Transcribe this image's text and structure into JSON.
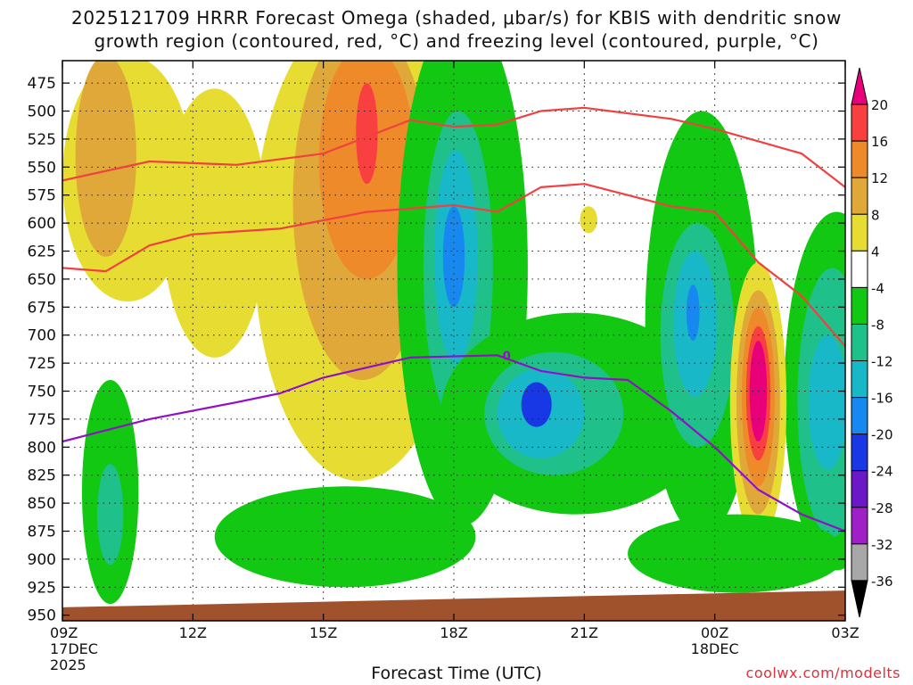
{
  "chart_data": {
    "type": "time-height cross section",
    "title": "2025121709 HRRR Forecast Omega (shaded, μbar/s) for KBIS with dendritic snow",
    "title_line2": "growth region (contoured, red, °C) and freezing level (contoured, purple, °C)",
    "xlabel": "Forecast Time (UTC)",
    "credit": "coolwx.com/modelts",
    "x_hours": [
      0,
      3,
      6,
      9,
      12,
      15,
      18
    ],
    "x_ticks": [
      {
        "hour": 0,
        "label": "09Z",
        "date": "17DEC",
        "year": "2025"
      },
      {
        "hour": 3,
        "label": "12Z",
        "date": "",
        "year": ""
      },
      {
        "hour": 6,
        "label": "15Z",
        "date": "",
        "year": ""
      },
      {
        "hour": 9,
        "label": "18Z",
        "date": "",
        "year": ""
      },
      {
        "hour": 12,
        "label": "21Z",
        "date": "",
        "year": ""
      },
      {
        "hour": 15,
        "label": "00Z",
        "date": "18DEC",
        "year": ""
      },
      {
        "hour": 18,
        "label": "03Z",
        "date": "",
        "year": ""
      }
    ],
    "y_ticks": [
      "475",
      "500",
      "525",
      "550",
      "575",
      "600",
      "625",
      "650",
      "675",
      "700",
      "725",
      "750",
      "775",
      "800",
      "825",
      "850",
      "875",
      "900",
      "925",
      "950"
    ],
    "y_range_mb": [
      455,
      955
    ],
    "colorbar": {
      "labels": [
        "20",
        "16",
        "12",
        "8",
        "4",
        "-4",
        "-8",
        "-12",
        "-16",
        "-20",
        "-24",
        "-28",
        "-32",
        "-36"
      ],
      "bins": [
        {
          "color": "#e8007a"
        },
        {
          "color": "#f84040"
        },
        {
          "color": "#ef8a2a"
        },
        {
          "color": "#e0a838"
        },
        {
          "color": "#e7dc32"
        },
        {
          "color": "#ffffff"
        },
        {
          "color": "#12c812"
        },
        {
          "color": "#20c08a"
        },
        {
          "color": "#18b8c8"
        },
        {
          "color": "#1688f0"
        },
        {
          "color": "#1838e6"
        },
        {
          "color": "#6a18c8"
        },
        {
          "color": "#a020c8"
        },
        {
          "color": "#a8a8a8"
        },
        {
          "color": "#000000"
        }
      ]
    },
    "omega_regions": [
      {
        "level": "4",
        "color": "#e7dc32",
        "hour": 1.5,
        "mb": 560,
        "dh": 1.5,
        "dmb": 110
      },
      {
        "level": "8",
        "color": "#e0a838",
        "hour": 1.0,
        "mb": 540,
        "dh": 0.7,
        "dmb": 90
      },
      {
        "level": "4",
        "color": "#e7dc32",
        "hour": 3.5,
        "mb": 600,
        "dh": 1.2,
        "dmb": 120
      },
      {
        "level": "4",
        "color": "#e7dc32",
        "hour": 6.8,
        "mb": 620,
        "dh": 2.4,
        "dmb": 210
      },
      {
        "level": "8",
        "color": "#e0a838",
        "hour": 6.9,
        "mb": 580,
        "dh": 1.6,
        "dmb": 160
      },
      {
        "level": "12",
        "color": "#ef8a2a",
        "hour": 7.0,
        "mb": 545,
        "dh": 1.1,
        "dmb": 105
      },
      {
        "level": "16",
        "color": "#f84040",
        "hour": 7.0,
        "mb": 520,
        "dh": 0.25,
        "dmb": 45
      },
      {
        "level": "-4",
        "color": "#12c812",
        "hour": 9.2,
        "mb": 640,
        "dh": 1.5,
        "dmb": 230
      },
      {
        "level": "-8",
        "color": "#20c08a",
        "hour": 9.1,
        "mb": 640,
        "dh": 0.8,
        "dmb": 140
      },
      {
        "level": "-12",
        "color": "#18b8c8",
        "hour": 9.05,
        "mb": 630,
        "dh": 0.5,
        "dmb": 95
      },
      {
        "level": "-16",
        "color": "#1688f0",
        "hour": 9.0,
        "mb": 630,
        "dh": 0.25,
        "dmb": 45
      },
      {
        "level": "-4",
        "color": "#12c812",
        "hour": 11.8,
        "mb": 770,
        "dh": 3.1,
        "dmb": 90
      },
      {
        "level": "-8",
        "color": "#20c08a",
        "hour": 11.3,
        "mb": 770,
        "dh": 1.6,
        "dmb": 55
      },
      {
        "level": "-12",
        "color": "#18b8c8",
        "hour": 11.0,
        "mb": 770,
        "dh": 1.0,
        "dmb": 40
      },
      {
        "level": "-20",
        "color": "#1838e6",
        "hour": 10.9,
        "mb": 762,
        "dh": 0.35,
        "dmb": 20
      },
      {
        "level": "-4",
        "color": "#12c812",
        "hour": 14.7,
        "mb": 690,
        "dh": 1.3,
        "dmb": 190
      },
      {
        "level": "-8",
        "color": "#20c08a",
        "hour": 14.6,
        "mb": 700,
        "dh": 0.85,
        "dmb": 100
      },
      {
        "level": "-12",
        "color": "#18b8c8",
        "hour": 14.55,
        "mb": 690,
        "dh": 0.5,
        "dmb": 65
      },
      {
        "level": "-16",
        "color": "#1688f0",
        "hour": 14.5,
        "mb": 680,
        "dh": 0.15,
        "dmb": 25
      },
      {
        "level": "-4",
        "color": "#12c812",
        "hour": 17.8,
        "mb": 750,
        "dh": 1.2,
        "dmb": 160
      },
      {
        "level": "-8",
        "color": "#20c08a",
        "hour": 17.7,
        "mb": 760,
        "dh": 0.8,
        "dmb": 120
      },
      {
        "level": "-12",
        "color": "#18b8c8",
        "hour": 17.6,
        "mb": 760,
        "dh": 0.45,
        "dmb": 60
      },
      {
        "level": "4",
        "color": "#e7dc32",
        "hour": 16.0,
        "mb": 760,
        "dh": 0.65,
        "dmb": 125
      },
      {
        "level": "8",
        "color": "#e0a838",
        "hour": 16.0,
        "mb": 760,
        "dh": 0.5,
        "dmb": 100
      },
      {
        "level": "12",
        "color": "#ef8a2a",
        "hour": 16.0,
        "mb": 755,
        "dh": 0.38,
        "dmb": 80
      },
      {
        "level": "16",
        "color": "#f84040",
        "hour": 16.0,
        "mb": 752,
        "dh": 0.28,
        "dmb": 60
      },
      {
        "level": "20",
        "color": "#e8007a",
        "hour": 16.0,
        "mb": 750,
        "dh": 0.2,
        "dmb": 45
      },
      {
        "level": "-4",
        "color": "#12c812",
        "hour": 1.1,
        "mb": 840,
        "dh": 0.65,
        "dmb": 100
      },
      {
        "level": "-8",
        "color": "#20c08a",
        "hour": 1.1,
        "mb": 860,
        "dh": 0.3,
        "dmb": 45
      },
      {
        "level": "-4",
        "color": "#12c812",
        "hour": 6.5,
        "mb": 880,
        "dh": 3.0,
        "dmb": 45
      },
      {
        "level": "-4",
        "color": "#12c812",
        "hour": 15.5,
        "mb": 895,
        "dh": 2.5,
        "dmb": 35
      },
      {
        "level": "4",
        "color": "#e7dc32",
        "hour": 12.1,
        "mb": 597,
        "dh": 0.2,
        "dmb": 12
      }
    ],
    "series": [
      {
        "name": "dendritic growth -12 °C",
        "color": "#f04040",
        "points": [
          [
            0,
            562
          ],
          [
            2,
            545
          ],
          [
            4,
            548
          ],
          [
            6,
            538
          ],
          [
            8,
            508
          ],
          [
            9,
            514
          ],
          [
            10,
            512
          ],
          [
            11,
            500
          ],
          [
            12,
            497
          ],
          [
            14,
            507
          ],
          [
            15,
            516
          ],
          [
            17,
            538
          ],
          [
            18,
            568
          ]
        ]
      },
      {
        "name": "dendritic growth -17 °C",
        "color": "#f04040",
        "points": [
          [
            0,
            640
          ],
          [
            1,
            643
          ],
          [
            2,
            620
          ],
          [
            3,
            610
          ],
          [
            5,
            605
          ],
          [
            7,
            590
          ],
          [
            9,
            584
          ],
          [
            10,
            590
          ],
          [
            11,
            568
          ],
          [
            12,
            565
          ],
          [
            14,
            585
          ],
          [
            15,
            590
          ],
          [
            16,
            635
          ],
          [
            17,
            665
          ],
          [
            18,
            710
          ]
        ]
      },
      {
        "name": "freezing level 0 °C",
        "color": "#9010c8",
        "label": "0",
        "points": [
          [
            0,
            795
          ],
          [
            2,
            775
          ],
          [
            4,
            760
          ],
          [
            5,
            752
          ],
          [
            6,
            738
          ],
          [
            8,
            720
          ],
          [
            10,
            718
          ],
          [
            11,
            732
          ],
          [
            12,
            738
          ],
          [
            13,
            740
          ],
          [
            14,
            768
          ],
          [
            15,
            800
          ],
          [
            16,
            838
          ],
          [
            17,
            860
          ],
          [
            18,
            875
          ]
        ]
      }
    ],
    "terrain": {
      "color": "#a0522d",
      "mb_start": 943,
      "mb_end": 928
    }
  }
}
